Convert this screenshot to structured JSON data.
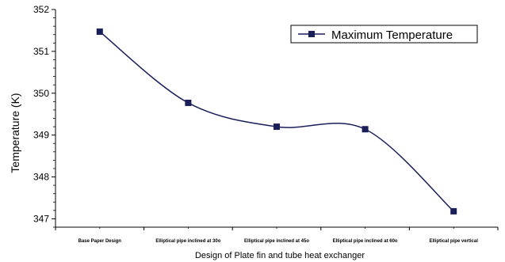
{
  "chart_data": {
    "type": "line",
    "title": "",
    "xlabel": "Design of Plate fin and tube heat exchanger",
    "ylabel": "Temperature (K)",
    "categories": [
      "Base Paper Design",
      "Elliptical pipe inclined at 30o",
      "Elliptical pipe inclined at 45o",
      "Elliptical pipe inclined at 60o",
      "Elliptical pipe vertical"
    ],
    "series": [
      {
        "name": "Maximum Temperature",
        "values": [
          351.47,
          349.77,
          349.2,
          349.14,
          347.18
        ],
        "color": "#1a1f5c",
        "marker": "square"
      }
    ],
    "ylim": [
      346.8,
      352.0
    ],
    "yticks": [
      347,
      348,
      349,
      350,
      351,
      352
    ],
    "legend_position": "top-right",
    "grid": false
  }
}
